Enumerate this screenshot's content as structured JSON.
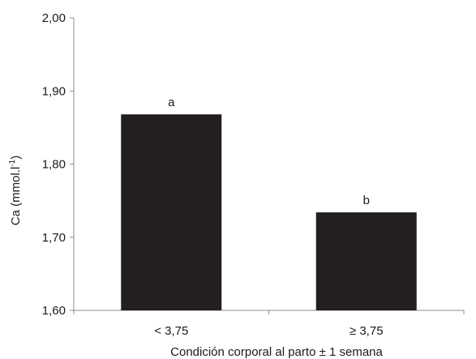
{
  "chart_data": {
    "type": "bar",
    "categories": [
      "< 3,75",
      "≥ 3,75"
    ],
    "values": [
      1.868,
      1.734
    ],
    "data_labels": [
      "a",
      "b"
    ],
    "xlabel": "Condición corporal al parto ± 1 semana",
    "ylabel_main": "Ca (mmol.l",
    "ylabel_sup": "-1",
    "ylabel_end": ")",
    "ylim": [
      1.6,
      2.0
    ],
    "yticks": [
      1.6,
      1.7,
      1.8,
      1.9,
      2.0
    ],
    "ytick_labels": [
      "1,60",
      "1,70",
      "1,80",
      "1,90",
      "2,00"
    ],
    "grid": false,
    "bar_color": "#231f20",
    "axis_color": "#8c8c8c"
  }
}
